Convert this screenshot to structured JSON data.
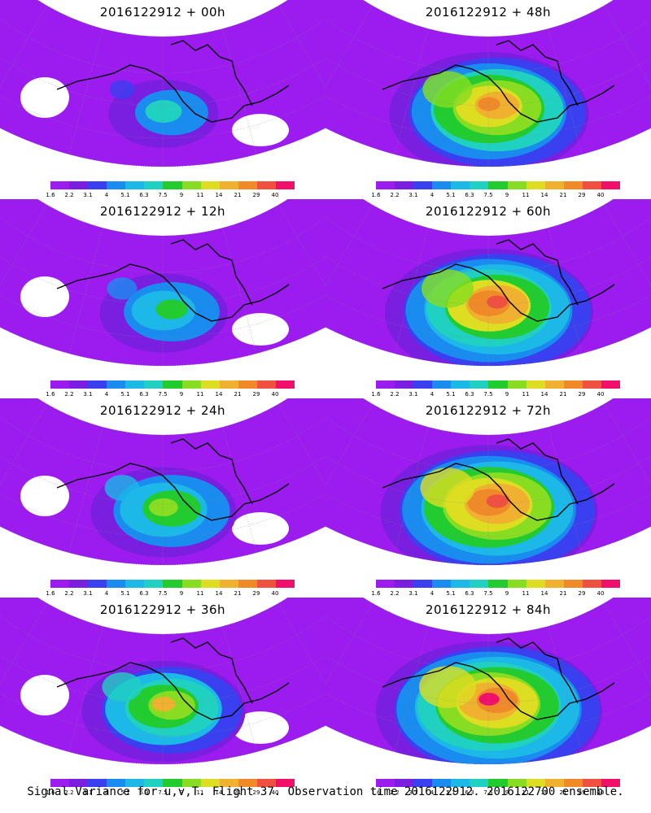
{
  "panels": [
    {
      "id": "p00",
      "title": "2016122912 + 00h",
      "intensity": 0.25
    },
    {
      "id": "p48",
      "title": "2016122912 + 48h",
      "intensity": 0.75
    },
    {
      "id": "p12",
      "title": "2016122912 + 12h",
      "intensity": 0.35
    },
    {
      "id": "p60",
      "title": "2016122912 + 60h",
      "intensity": 0.8
    },
    {
      "id": "p24",
      "title": "2016122912 + 24h",
      "intensity": 0.45
    },
    {
      "id": "p72",
      "title": "2016122912 + 72h",
      "intensity": 0.85
    },
    {
      "id": "p36",
      "title": "2016122912 + 36h",
      "intensity": 0.55
    },
    {
      "id": "p84",
      "title": "2016122912 + 84h",
      "intensity": 0.9
    }
  ],
  "colorbar": {
    "labels": [
      "1.6",
      "2.2",
      "3.1",
      "4",
      "5.1",
      "6.3",
      "7.5",
      "9",
      "11",
      "14",
      "21",
      "29",
      "40"
    ],
    "colors": [
      "#9c1cf0",
      "#7a1ee0",
      "#3a40f0",
      "#1a8cf0",
      "#1cb8e8",
      "#20d0c0",
      "#22cc30",
      "#88dd22",
      "#dddd22",
      "#f0b030",
      "#f08a28",
      "#f05040",
      "#f0106c"
    ]
  },
  "footer": "Signal Variance for u,v,T. Flight 37. Observation time 2016122912. 2016122700 ensemble."
}
